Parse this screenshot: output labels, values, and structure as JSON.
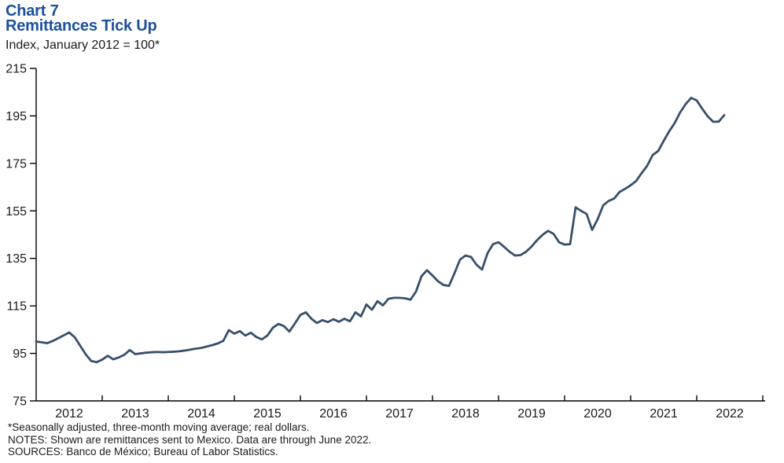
{
  "header": {
    "chart_label": "Chart 7",
    "title": "Remittances Tick Up",
    "subtitle": "Index, January 2012 = 100*"
  },
  "footnotes": [
    "*Seasonally adjusted, three-month moving average; real dollars.",
    "NOTES: Shown are remittances sent to Mexico. Data are through June 2022.",
    "SOURCES: Banco de México; Bureau of Labor Statistics."
  ],
  "colors": {
    "title_blue": "#1b4f9e",
    "line": "#36506a",
    "axis": "#000000",
    "text": "#1a1a1a"
  },
  "chart_data": {
    "type": "line",
    "title": "Remittances Tick Up",
    "subtitle": "Index, January 2012 = 100*",
    "series_name": "Remittances sent to Mexico (index, Jan 2012 = 100)",
    "frequency": "monthly",
    "start_month": "2012-01",
    "end_month": "2022-06",
    "ylim": [
      75,
      215
    ],
    "y_ticks": [
      75,
      95,
      115,
      135,
      155,
      175,
      195,
      215
    ],
    "x_tick_years": [
      "2012",
      "2013",
      "2014",
      "2015",
      "2016",
      "2017",
      "2018",
      "2019",
      "2020",
      "2021",
      "2022"
    ],
    "grid": false,
    "legend_position": "none",
    "values": [
      100.0,
      99.7,
      99.3,
      100.2,
      101.4,
      102.6,
      103.8,
      101.8,
      98.2,
      94.6,
      91.8,
      91.3,
      92.4,
      94.0,
      92.5,
      93.3,
      94.4,
      96.4,
      94.7,
      95.0,
      95.3,
      95.5,
      95.6,
      95.5,
      95.6,
      95.7,
      95.9,
      96.2,
      96.6,
      97.0,
      97.3,
      97.9,
      98.5,
      99.2,
      100.3,
      104.8,
      103.3,
      104.4,
      102.5,
      103.7,
      101.9,
      100.9,
      102.5,
      105.8,
      107.4,
      106.5,
      104.2,
      107.6,
      111.2,
      112.3,
      109.6,
      107.8,
      109.0,
      108.2,
      109.4,
      108.3,
      109.6,
      108.5,
      112.3,
      110.6,
      115.6,
      113.4,
      117.0,
      115.2,
      118.0,
      118.4,
      118.4,
      118.2,
      117.6,
      121.0,
      127.5,
      130.0,
      127.8,
      125.4,
      123.8,
      123.4,
      128.8,
      134.5,
      136.2,
      135.6,
      132.3,
      130.3,
      137.2,
      141.0,
      141.8,
      139.9,
      137.8,
      136.2,
      136.4,
      137.8,
      140.0,
      142.7,
      144.9,
      146.6,
      145.3,
      141.8,
      140.8,
      141.0,
      156.5,
      155.0,
      153.7,
      147.0,
      151.5,
      157.3,
      159.2,
      160.2,
      163.0,
      164.3,
      165.8,
      167.6,
      170.9,
      174.0,
      178.5,
      180.2,
      184.5,
      188.5,
      192.0,
      196.5,
      200.0,
      202.6,
      201.5,
      198.0,
      194.8,
      192.5,
      192.6,
      195.3
    ]
  }
}
